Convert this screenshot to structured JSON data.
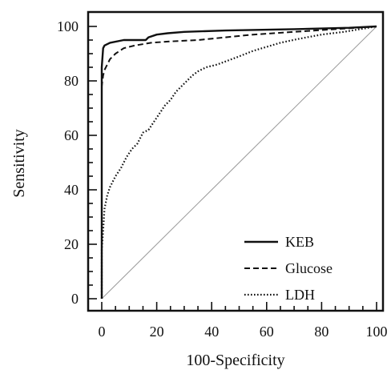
{
  "chart_data": {
    "type": "line",
    "title": "",
    "xlabel": "100-Specificity",
    "ylabel": "Sensitivity",
    "xlim": [
      0,
      100
    ],
    "ylim": [
      0,
      100
    ],
    "xticks": [
      "0",
      "20",
      "40",
      "60",
      "80",
      "100"
    ],
    "yticks": [
      "0",
      "20",
      "40",
      "60",
      "80",
      "100"
    ],
    "x_minor_step": 5,
    "y_minor_step": 5,
    "grid": false,
    "legend_position": "bottom-right",
    "diagonal_reference": true,
    "series": [
      {
        "name": "KEB",
        "style": "solid",
        "points": [
          [
            0,
            0
          ],
          [
            0,
            85
          ],
          [
            0.5,
            92
          ],
          [
            1,
            93
          ],
          [
            3,
            94
          ],
          [
            8,
            95
          ],
          [
            16,
            95
          ],
          [
            17,
            96
          ],
          [
            20,
            97
          ],
          [
            24,
            97.5
          ],
          [
            30,
            98
          ],
          [
            45,
            98.5
          ],
          [
            70,
            99
          ],
          [
            90,
            99.5
          ],
          [
            100,
            100
          ]
        ]
      },
      {
        "name": "Glucose",
        "style": "dashed",
        "points": [
          [
            0,
            0
          ],
          [
            0,
            78
          ],
          [
            0.5,
            82
          ],
          [
            1,
            84
          ],
          [
            2,
            86
          ],
          [
            3,
            88
          ],
          [
            5,
            90
          ],
          [
            8,
            92
          ],
          [
            12,
            93
          ],
          [
            18,
            94
          ],
          [
            25,
            94.5
          ],
          [
            35,
            95
          ],
          [
            45,
            96
          ],
          [
            55,
            97
          ],
          [
            70,
            98
          ],
          [
            85,
            99
          ],
          [
            100,
            100
          ]
        ]
      },
      {
        "name": "LDH",
        "style": "dotted",
        "points": [
          [
            0,
            0
          ],
          [
            0,
            18
          ],
          [
            0.5,
            25
          ],
          [
            1,
            33
          ],
          [
            2,
            38
          ],
          [
            3,
            41
          ],
          [
            5,
            45
          ],
          [
            7,
            48
          ],
          [
            9,
            52
          ],
          [
            11,
            55
          ],
          [
            13,
            57
          ],
          [
            15,
            61
          ],
          [
            17,
            62
          ],
          [
            19,
            65
          ],
          [
            21,
            68
          ],
          [
            23,
            71
          ],
          [
            25,
            73
          ],
          [
            27,
            76
          ],
          [
            29,
            78
          ],
          [
            31,
            80
          ],
          [
            33,
            82
          ],
          [
            35,
            83.5
          ],
          [
            38,
            85
          ],
          [
            42,
            86
          ],
          [
            46,
            87.5
          ],
          [
            50,
            89
          ],
          [
            55,
            91
          ],
          [
            60,
            92.5
          ],
          [
            65,
            94
          ],
          [
            72,
            95.5
          ],
          [
            80,
            97
          ],
          [
            88,
            98
          ],
          [
            94,
            99
          ],
          [
            100,
            100
          ]
        ]
      }
    ]
  },
  "colors": {
    "line": "#111111",
    "diagonal": "#9a9a9a",
    "axis": "#111111"
  }
}
